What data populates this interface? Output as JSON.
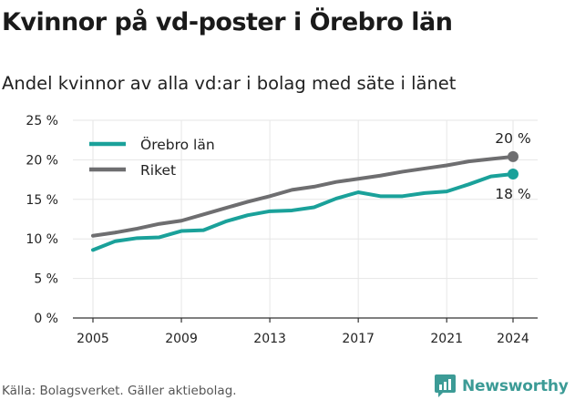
{
  "title": "Kvinnor på vd-poster i Örebro län",
  "subtitle": "Andel kvinnor av alla vd:ar i bolag med säte i länet",
  "source": "Källa: Bolagsverket. Gäller aktiebolag.",
  "brand": "Newsworthy",
  "chart_data": {
    "type": "line",
    "title": "Kvinnor på vd-poster i Örebro län",
    "subtitle": "Andel kvinnor av alla vd:ar i bolag med säte i länet",
    "xlabel": "",
    "ylabel": "",
    "x": [
      2005,
      2006,
      2007,
      2008,
      2009,
      2010,
      2011,
      2012,
      2013,
      2014,
      2015,
      2016,
      2017,
      2018,
      2019,
      2020,
      2021,
      2022,
      2023,
      2024
    ],
    "xticks": [
      2005,
      2009,
      2013,
      2017,
      2021,
      2024
    ],
    "xtick_labels": [
      "2005",
      "2009",
      "2013",
      "2017",
      "2021",
      "2024"
    ],
    "yticks": [
      0,
      5,
      10,
      15,
      20,
      25
    ],
    "ytick_labels": [
      "0 %",
      "5 %",
      "10 %",
      "15 %",
      "20 %",
      "25 %"
    ],
    "ylim": [
      0,
      25
    ],
    "xlim": [
      2005,
      2024
    ],
    "grid": true,
    "legend_position": "top-left",
    "series": [
      {
        "name": "Örebro län",
        "color": "#1aa19a",
        "values": [
          8.6,
          9.7,
          10.1,
          10.2,
          11.0,
          11.1,
          12.2,
          13.0,
          13.5,
          13.6,
          14.0,
          15.1,
          15.9,
          15.4,
          15.4,
          15.8,
          16.0,
          16.9,
          17.9,
          18.2
        ],
        "end_label": "18 %",
        "end_label_position": "below"
      },
      {
        "name": "Riket",
        "color": "#6e6e70",
        "values": [
          10.4,
          10.8,
          11.3,
          11.9,
          12.3,
          13.1,
          13.9,
          14.7,
          15.4,
          16.2,
          16.6,
          17.2,
          17.6,
          18.0,
          18.5,
          18.9,
          19.3,
          19.8,
          20.1,
          20.4
        ],
        "end_label": "20 %",
        "end_label_position": "above"
      }
    ]
  },
  "colors": {
    "axis": "#333333",
    "grid": "#e6e6e6",
    "text": "#222222",
    "brand": "#3c9b96"
  }
}
